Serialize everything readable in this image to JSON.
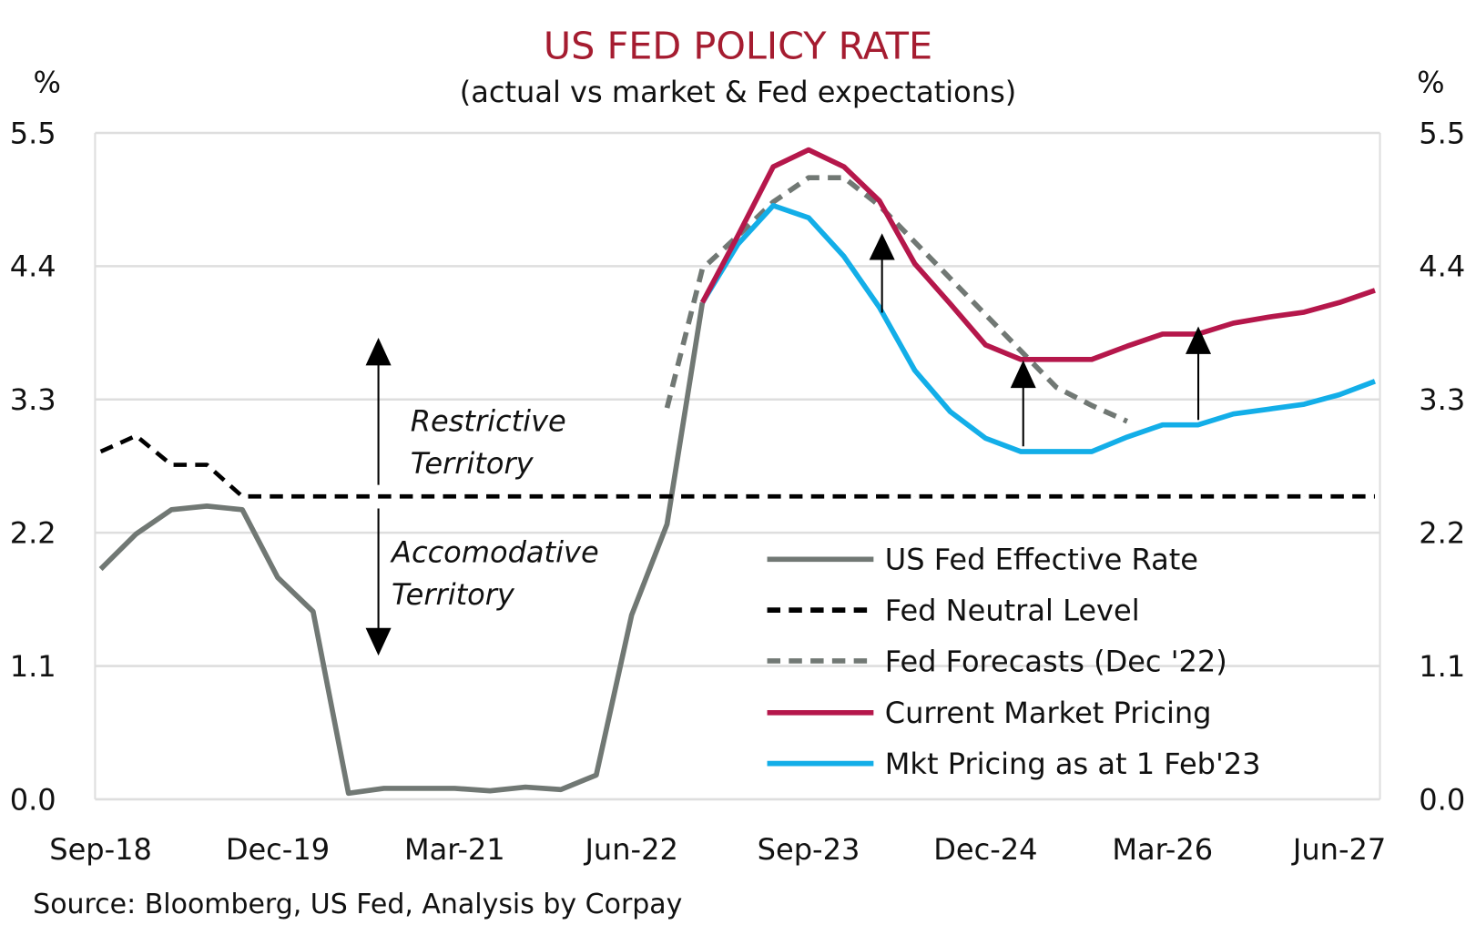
{
  "chart_data": {
    "type": "line",
    "title": "US FED POLICY RATE",
    "subtitle": "(actual vs market & Fed expectations)",
    "ylabel_left": "%",
    "ylabel_right": "%",
    "ylim": [
      0,
      5.5
    ],
    "yticks": [
      "0.0",
      "1.1",
      "2.2",
      "3.3",
      "4.4",
      "5.5"
    ],
    "xtick_labels": [
      "Sep-18",
      "Dec-19",
      "Mar-21",
      "Jun-22",
      "Sep-23",
      "Dec-24",
      "Mar-26",
      "Jun-27"
    ],
    "categories": [
      "Sep-18",
      "Dec-18",
      "Mar-19",
      "Jun-19",
      "Sep-19",
      "Dec-19",
      "Mar-20",
      "Jun-20",
      "Sep-20",
      "Dec-20",
      "Mar-21",
      "Jun-21",
      "Sep-21",
      "Dec-21",
      "Mar-22",
      "Jun-22",
      "Sep-22",
      "Dec-22",
      "Mar-23",
      "Jun-23",
      "Sep-23",
      "Dec-23",
      "Mar-24",
      "Jun-24",
      "Sep-24",
      "Dec-24",
      "Mar-25",
      "Jun-25",
      "Sep-25",
      "Dec-25",
      "Mar-26",
      "Jun-26",
      "Sep-26",
      "Dec-26",
      "Mar-27",
      "Jun-27",
      "Sep-27"
    ],
    "grid": true,
    "legend_position": "bottom-right",
    "series": [
      {
        "name": "US Fed Effective Rate",
        "color": "#717874",
        "style": "solid",
        "values": [
          1.9,
          2.19,
          2.39,
          2.42,
          2.39,
          1.83,
          1.55,
          0.05,
          0.09,
          0.09,
          0.09,
          0.07,
          0.1,
          0.08,
          0.2,
          1.52,
          2.27,
          4.1,
          null,
          null,
          null,
          null,
          null,
          null,
          null,
          null,
          null,
          null,
          null,
          null,
          null,
          null,
          null,
          null,
          null,
          null,
          null
        ]
      },
      {
        "name": "Fed Neutral Level",
        "color": "#000000",
        "style": "dashed",
        "values": [
          2.87,
          3.0,
          2.76,
          2.76,
          2.5,
          2.5,
          2.5,
          2.5,
          2.5,
          2.5,
          2.5,
          2.5,
          2.5,
          2.5,
          2.5,
          2.5,
          2.5,
          2.5,
          2.5,
          2.5,
          2.5,
          2.5,
          2.5,
          2.5,
          2.5,
          2.5,
          2.5,
          2.5,
          2.5,
          2.5,
          2.5,
          2.5,
          2.5,
          2.5,
          2.5,
          2.5,
          2.5
        ]
      },
      {
        "name": "Fed Forecasts (Dec '22)",
        "color": "#717874",
        "style": "dashed",
        "values": [
          null,
          null,
          null,
          null,
          null,
          null,
          null,
          null,
          null,
          null,
          null,
          null,
          null,
          null,
          null,
          null,
          3.23,
          4.38,
          4.65,
          4.93,
          5.13,
          5.13,
          4.9,
          4.6,
          4.3,
          4.0,
          3.7,
          3.4,
          3.25,
          3.12,
          null,
          null,
          null,
          null,
          null,
          null,
          null
        ]
      },
      {
        "name": "Current Market Pricing",
        "color": "#b5174b",
        "style": "solid",
        "values": [
          null,
          null,
          null,
          null,
          null,
          null,
          null,
          null,
          null,
          null,
          null,
          null,
          null,
          null,
          null,
          null,
          null,
          4.1,
          4.65,
          5.22,
          5.36,
          5.22,
          4.94,
          4.42,
          4.09,
          3.75,
          3.63,
          3.63,
          3.63,
          3.74,
          3.84,
          3.84,
          3.93,
          3.98,
          4.02,
          4.1,
          4.2
        ]
      },
      {
        "name": "Mkt Pricing as at 1 Feb'23",
        "color": "#13aee8",
        "style": "solid",
        "values": [
          null,
          null,
          null,
          null,
          null,
          null,
          null,
          null,
          null,
          null,
          null,
          null,
          null,
          null,
          null,
          null,
          null,
          4.1,
          4.58,
          4.9,
          4.8,
          4.48,
          4.06,
          3.54,
          3.2,
          2.98,
          2.87,
          2.87,
          2.87,
          2.99,
          3.09,
          3.09,
          3.18,
          3.22,
          3.26,
          3.34,
          3.45
        ]
      }
    ],
    "annotations": [
      {
        "text_line1": "Restrictive",
        "text_line2": "Territory"
      },
      {
        "text_line1": "Accomodative",
        "text_line2": "Territory"
      }
    ],
    "source": "Source: Bloomberg, US Fed, Analysis by Corpay"
  }
}
